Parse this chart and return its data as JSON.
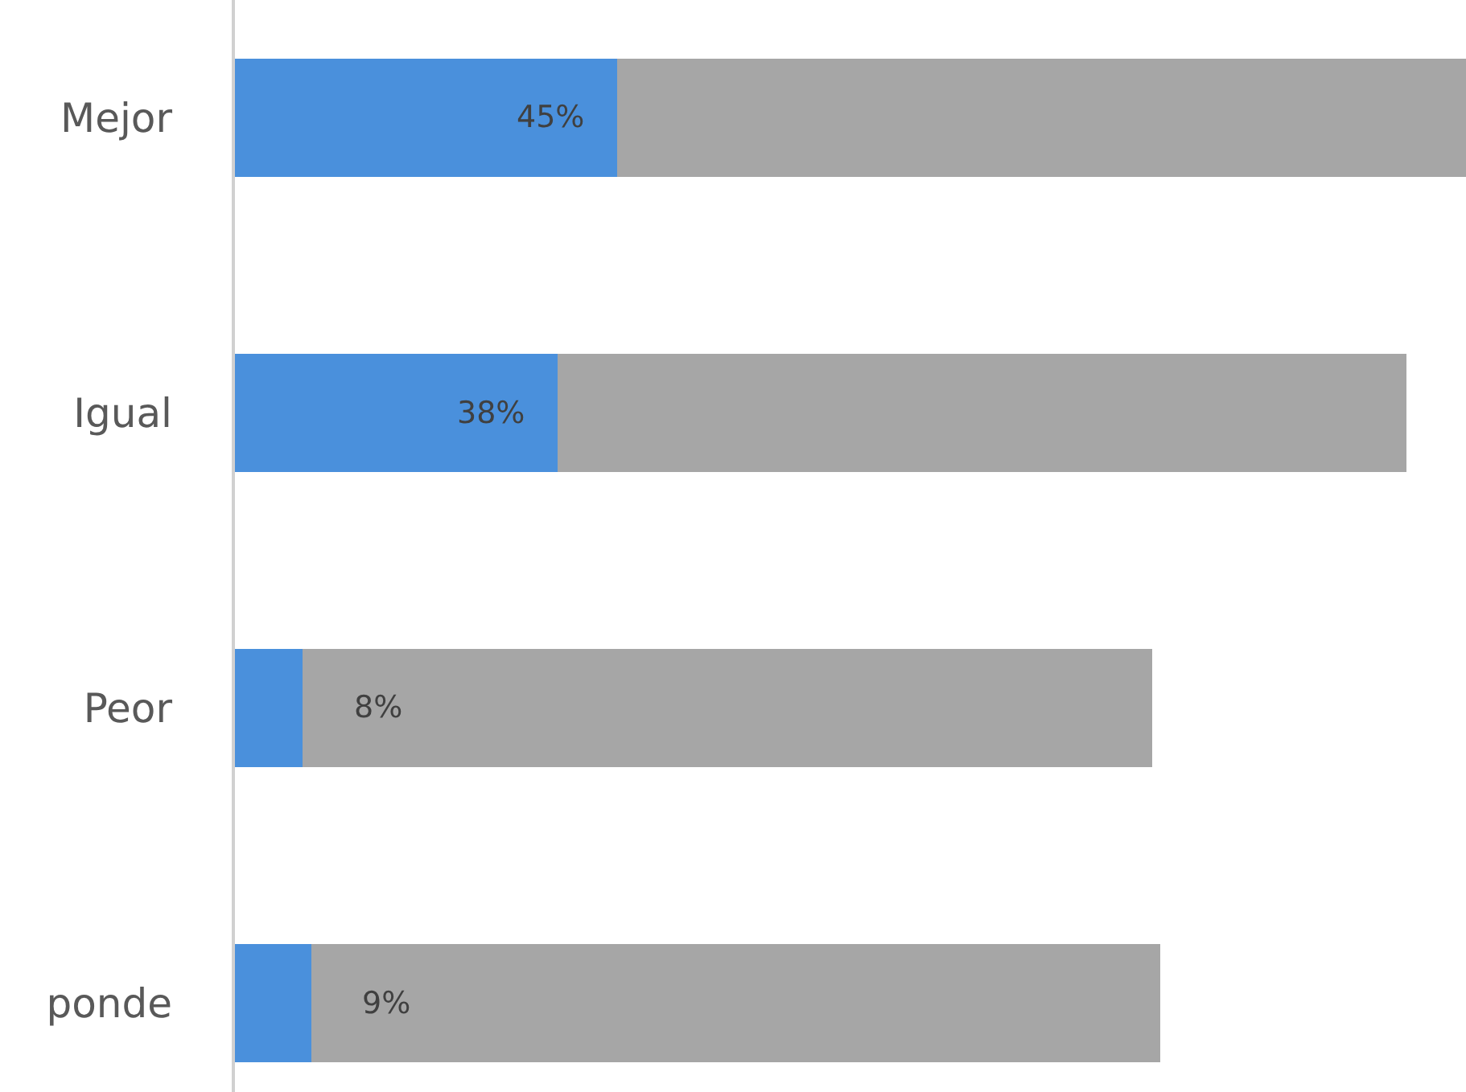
{
  "chart_data": {
    "type": "bar",
    "orientation": "horizontal",
    "stacked": true,
    "categories": [
      "Mejor",
      "Igual",
      "Peor",
      "ponde"
    ],
    "series": [
      {
        "color": "#4a90dc",
        "values": [
          45,
          38,
          8,
          9
        ],
        "value_labels": [
          "45%",
          "38%",
          "8%",
          "9%"
        ]
      },
      {
        "color": "#a6a6a6",
        "values": [
          100,
          100,
          100,
          100
        ]
      }
    ],
    "xlim": [
      0,
      145
    ],
    "grid": false
  }
}
